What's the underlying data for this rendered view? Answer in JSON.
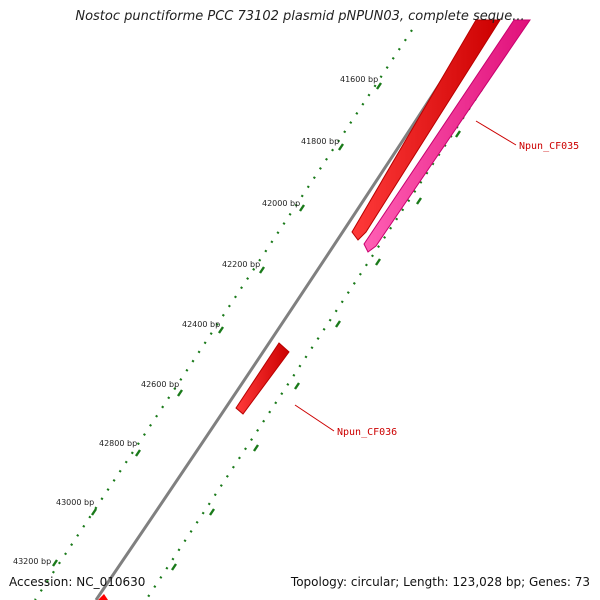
{
  "title": "Nostoc punctiforme PCC 73102 plasmid pNPUN03, complete seque...",
  "footer": {
    "accession": "Accession: NC_010630",
    "summary": "Topology: circular; Length: 123,028 bp; Genes: 73"
  },
  "ruler": {
    "ticks": [
      {
        "label": "41600 bp"
      },
      {
        "label": "41800 bp"
      },
      {
        "label": "42000 bp"
      },
      {
        "label": "42200 bp"
      },
      {
        "label": "42400 bp"
      },
      {
        "label": "42600 bp"
      },
      {
        "label": "42800 bp"
      },
      {
        "label": "43000 bp"
      },
      {
        "label": "43200 bp"
      }
    ]
  },
  "genes": [
    {
      "name": "Npun_CF035",
      "color": "#ff0000"
    },
    {
      "name": "Npun_CF036",
      "color": "#ff0000"
    }
  ],
  "colors": {
    "backbone": "#808080",
    "forward_gene": "#ff0000",
    "reverse_gene": "#ff1493",
    "ruler": "#1a7a1a",
    "label_line": "#cc0000"
  }
}
